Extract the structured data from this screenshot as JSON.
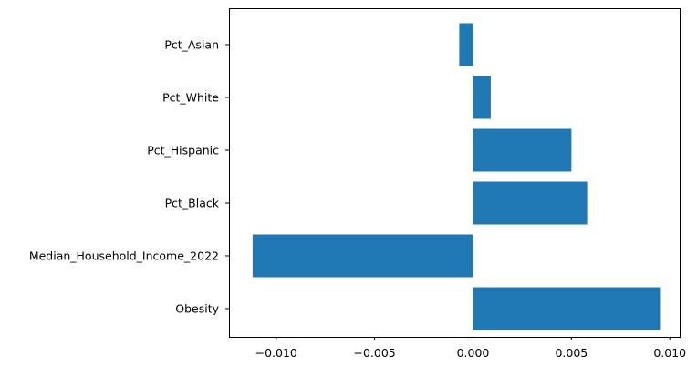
{
  "chart_data": {
    "type": "bar",
    "orientation": "horizontal",
    "categories": [
      "Obesity",
      "Median_Household_Income_2022",
      "Pct_Black",
      "Pct_Hispanic",
      "Pct_White",
      "Pct_Asian"
    ],
    "values": [
      0.0095,
      -0.0112,
      0.0058,
      0.005,
      0.0009,
      -0.0007
    ],
    "xlim": [
      -0.0124,
      0.0105
    ],
    "x_ticks": [
      -0.01,
      -0.005,
      0.0,
      0.005,
      0.01
    ],
    "x_tick_labels": [
      "−0.010",
      "−0.005",
      "0.000",
      "0.005",
      "0.010"
    ],
    "title": "",
    "xlabel": "",
    "ylabel": "",
    "grid": false,
    "colors": {
      "bar": "#1f77b4",
      "axis": "#000000",
      "background": "#ffffff"
    }
  }
}
